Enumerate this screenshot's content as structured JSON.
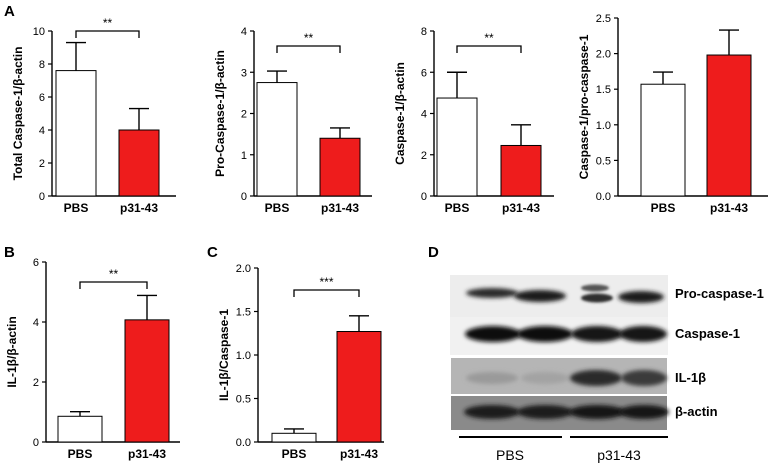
{
  "panels": {
    "A": "A",
    "B": "B",
    "C": "C",
    "D": "D"
  },
  "chart_data": [
    {
      "type": "bar",
      "panel": "A",
      "categories": [
        "PBS",
        "p31-43"
      ],
      "values": [
        7.6,
        4.0
      ],
      "errors": [
        1.7,
        1.3
      ],
      "ylabel": "Total Caspase-1/β-actin",
      "ylim": [
        0,
        10
      ],
      "yticks": [
        "0",
        "2",
        "4",
        "6",
        "8",
        "10"
      ],
      "significance": "**",
      "colors": [
        "#ffffff",
        "#ee1c1c"
      ]
    },
    {
      "type": "bar",
      "panel": "A",
      "categories": [
        "PBS",
        "p31-43"
      ],
      "values": [
        2.75,
        1.4
      ],
      "errors": [
        0.28,
        0.25
      ],
      "ylabel": "Pro-Caspase-1/β-actin",
      "ylim": [
        0,
        4
      ],
      "yticks": [
        "0",
        "1",
        "2",
        "3",
        "4"
      ],
      "significance": "**",
      "colors": [
        "#ffffff",
        "#ee1c1c"
      ]
    },
    {
      "type": "bar",
      "panel": "A",
      "categories": [
        "PBS",
        "p31-43"
      ],
      "values": [
        4.75,
        2.45
      ],
      "errors": [
        1.25,
        1.0
      ],
      "ylabel": "Caspase-1/β-actin",
      "ylim": [
        0,
        8
      ],
      "yticks": [
        "0",
        "2",
        "4",
        "6",
        "8"
      ],
      "significance": "**",
      "colors": [
        "#ffffff",
        "#ee1c1c"
      ]
    },
    {
      "type": "bar",
      "panel": "A",
      "categories": [
        "PBS",
        "p31-43"
      ],
      "values": [
        1.57,
        1.98
      ],
      "errors": [
        0.17,
        0.35
      ],
      "ylabel": "Caspase-1/pro-caspase-1",
      "ylim": [
        0,
        2.5
      ],
      "yticks": [
        "0.0",
        "0.5",
        "1.0",
        "1.5",
        "2.0",
        "2.5"
      ],
      "significance": "",
      "colors": [
        "#ffffff",
        "#ee1c1c"
      ]
    },
    {
      "type": "bar",
      "panel": "B",
      "categories": [
        "PBS",
        "p31-43"
      ],
      "values": [
        1.0,
        4.75
      ],
      "errors": [
        0.18,
        0.95
      ],
      "ylabel": "IL-1β/β-actin",
      "ylim": [
        0,
        7
      ],
      "yticks": [
        "0",
        "2",
        "4",
        "6"
      ],
      "significance": "**",
      "colors": [
        "#ffffff",
        "#ee1c1c"
      ]
    },
    {
      "type": "bar",
      "panel": "C",
      "categories": [
        "PBS",
        "p31-43"
      ],
      "values": [
        0.1,
        1.27
      ],
      "errors": [
        0.05,
        0.18
      ],
      "ylabel": "IL-1β/Caspase-1",
      "ylim": [
        0,
        2.0
      ],
      "yticks": [
        "0.0",
        "0.5",
        "1.0",
        "1.5",
        "2.0"
      ],
      "significance": "***",
      "colors": [
        "#ffffff",
        "#ee1c1c"
      ]
    }
  ],
  "blot": {
    "rows": [
      "Pro-caspase-1",
      "Caspase-1",
      "IL-1β",
      "β-actin"
    ],
    "groups": [
      "PBS",
      "p31-43"
    ]
  }
}
